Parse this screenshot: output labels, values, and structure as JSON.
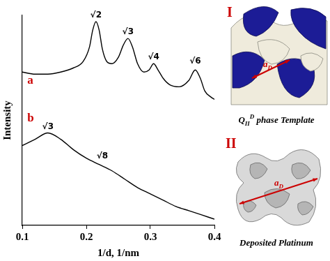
{
  "chart_data": {
    "type": "line",
    "xlabel": "1/d, 1/nm",
    "ylabel": "Intensity",
    "xlim": [
      0.1,
      0.4
    ],
    "xticks": [
      0.1,
      0.2,
      0.3,
      0.4
    ],
    "ylim": [
      0,
      100
    ],
    "tick_labels": "x",
    "grid": false,
    "series": [
      {
        "color": "#000000",
        "x": [
          0.1,
          0.12,
          0.14,
          0.16,
          0.18,
          0.195,
          0.205,
          0.21,
          0.215,
          0.22,
          0.225,
          0.232,
          0.24,
          0.25,
          0.258,
          0.265,
          0.272,
          0.28,
          0.29,
          0.298,
          0.305,
          0.312,
          0.32,
          0.33,
          0.345,
          0.36,
          0.37,
          0.378,
          0.385,
          0.395,
          0.4
        ],
        "values": [
          73,
          72,
          72,
          73,
          75,
          78,
          85,
          93,
          97,
          93,
          84,
          78,
          77,
          80,
          86,
          89,
          85,
          77,
          73,
          74,
          77,
          74,
          70,
          67,
          66,
          69,
          74,
          70,
          64,
          61,
          60
        ]
      },
      {
        "color": "#000000",
        "x": [
          0.1,
          0.12,
          0.14,
          0.16,
          0.18,
          0.2,
          0.22,
          0.24,
          0.26,
          0.28,
          0.3,
          0.32,
          0.34,
          0.36,
          0.38,
          0.4
        ],
        "values": [
          38,
          41,
          44,
          41,
          36,
          32,
          29,
          26,
          22,
          18,
          15,
          12,
          9,
          7,
          5,
          3
        ]
      }
    ],
    "annotations": [
      {
        "text": "√2",
        "x": 0.215,
        "y": 98
      },
      {
        "text": "√3",
        "x": 0.265,
        "y": 90
      },
      {
        "text": "√4",
        "x": 0.305,
        "y": 78
      },
      {
        "text": "√6",
        "x": 0.37,
        "y": 76
      },
      {
        "text": "√3",
        "x": 0.14,
        "y": 45
      },
      {
        "text": "√8",
        "x": 0.225,
        "y": 31
      },
      {
        "text": "a",
        "x": 0.108,
        "y": 66,
        "color": "#cc0000"
      },
      {
        "text": "b",
        "x": 0.108,
        "y": 48,
        "color": "#cc0000"
      }
    ]
  },
  "panels": [
    {
      "label": "I",
      "caption": {
        "symbol": "Q",
        "subscript": "II",
        "superscript": "D",
        "text": " phase Template"
      },
      "dimension": {
        "symbol": "a",
        "subscript": "D"
      }
    },
    {
      "label": "II",
      "caption": {
        "text": "Deposited Platinum"
      },
      "dimension": {
        "symbol": "a",
        "subscript": "D"
      }
    }
  ]
}
